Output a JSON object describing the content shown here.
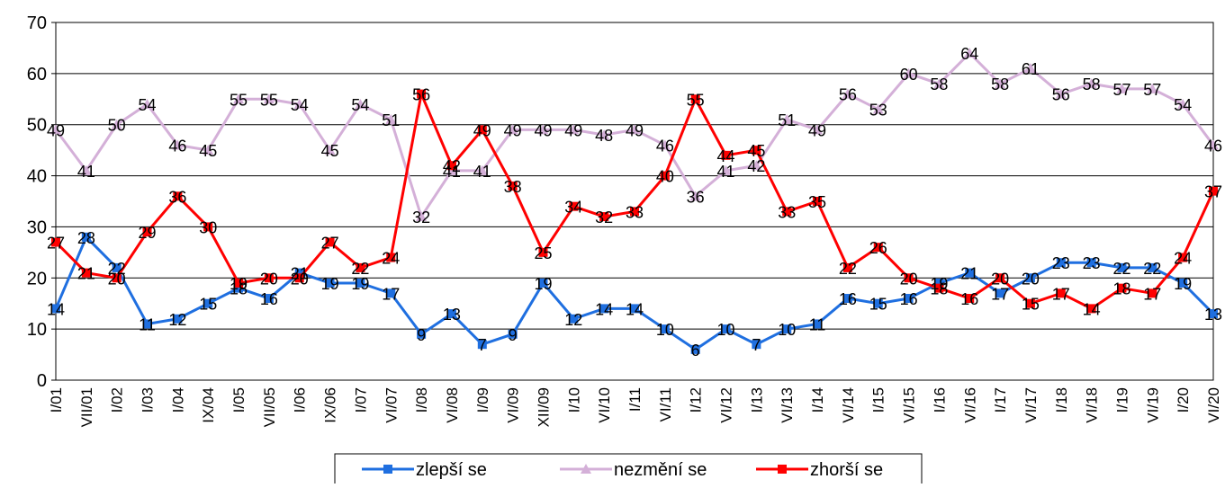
{
  "chart_data": {
    "type": "line",
    "categories": [
      "I/01",
      "VII/01",
      "I/02",
      "I/03",
      "I/04",
      "IX/04",
      "I/05",
      "VII/05",
      "I/06",
      "IX/06",
      "I/07",
      "VI/07",
      "I/08",
      "VI/08",
      "I/09",
      "VI/09",
      "XII/09",
      "I/10",
      "VI/10",
      "I/11",
      "VI/11",
      "I/12",
      "VI/12",
      "I/13",
      "VI/13",
      "I/14",
      "VI/14",
      "I/15",
      "VI/15",
      "I/16",
      "VI/16",
      "I/17",
      "VI/17",
      "I/18",
      "VI/18",
      "I/19",
      "VI/19",
      "I/20",
      "VI/20"
    ],
    "series": [
      {
        "name": "zlepší se",
        "color": "#1f6fe0",
        "marker": "square",
        "values": [
          14,
          28,
          22,
          11,
          12,
          15,
          18,
          16,
          21,
          19,
          19,
          17,
          9,
          13,
          7,
          9,
          19,
          12,
          14,
          14,
          10,
          6,
          10,
          7,
          10,
          11,
          16,
          15,
          16,
          19,
          21,
          17,
          20,
          23,
          23,
          22,
          22,
          19,
          13
        ]
      },
      {
        "name": "nezmění se",
        "color": "#d4b0d8",
        "marker": "triangle",
        "values": [
          49,
          41,
          50,
          54,
          46,
          45,
          55,
          55,
          54,
          45,
          54,
          51,
          32,
          41,
          41,
          49,
          49,
          49,
          48,
          49,
          46,
          36,
          41,
          42,
          51,
          49,
          56,
          53,
          60,
          58,
          64,
          58,
          61,
          56,
          58,
          57,
          57,
          54,
          46
        ]
      },
      {
        "name": "zhorší se",
        "color": "#ff0000",
        "marker": "square",
        "values": [
          27,
          21,
          20,
          29,
          36,
          30,
          19,
          20,
          20,
          27,
          22,
          24,
          56,
          42,
          49,
          38,
          25,
          34,
          32,
          33,
          40,
          55,
          44,
          45,
          33,
          35,
          22,
          26,
          20,
          18,
          16,
          20,
          15,
          17,
          14,
          18,
          17,
          24,
          37
        ]
      }
    ],
    "ylim": [
      0,
      70
    ],
    "yticks": [
      0,
      10,
      20,
      30,
      40,
      50,
      60,
      70
    ],
    "grid": true,
    "legend": "bottom"
  }
}
